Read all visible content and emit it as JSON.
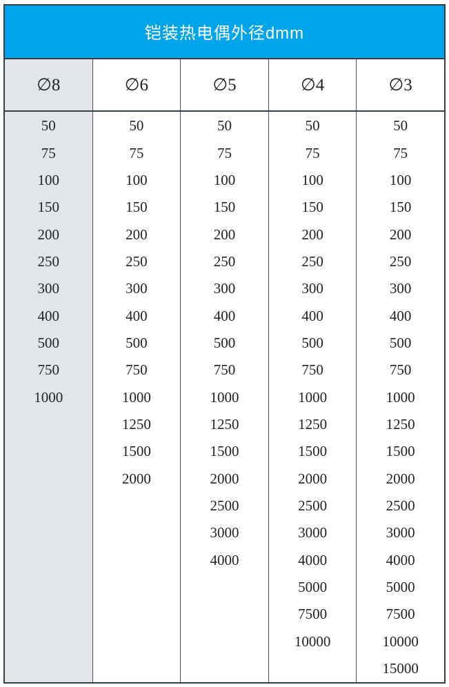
{
  "title": "铠装热电偶外径dmm",
  "table": {
    "columns": [
      {
        "header": "∅8",
        "values": [
          50,
          75,
          100,
          150,
          200,
          250,
          300,
          400,
          500,
          750,
          1000
        ]
      },
      {
        "header": "∅6",
        "values": [
          50,
          75,
          100,
          150,
          200,
          250,
          300,
          400,
          500,
          750,
          1000,
          1250,
          1500,
          2000
        ]
      },
      {
        "header": "∅5",
        "values": [
          50,
          75,
          100,
          150,
          200,
          250,
          300,
          400,
          500,
          750,
          1000,
          1250,
          1500,
          2000,
          2500,
          3000,
          4000
        ]
      },
      {
        "header": "∅4",
        "values": [
          50,
          75,
          100,
          150,
          200,
          250,
          300,
          400,
          500,
          750,
          1000,
          1250,
          1500,
          2000,
          2500,
          3000,
          4000,
          5000,
          7500,
          10000
        ]
      },
      {
        "header": "∅3",
        "values": [
          50,
          75,
          100,
          150,
          200,
          250,
          300,
          400,
          500,
          750,
          1000,
          1250,
          1500,
          2000,
          2500,
          3000,
          4000,
          5000,
          7500,
          10000,
          15000
        ]
      }
    ]
  },
  "colors": {
    "header_bg": "#00a4ea",
    "first_col_bg": "#e2e6eb",
    "border": "#333e45",
    "inner_border": "#49545b",
    "title_text": "#ffffff",
    "cell_text": "#222222"
  }
}
